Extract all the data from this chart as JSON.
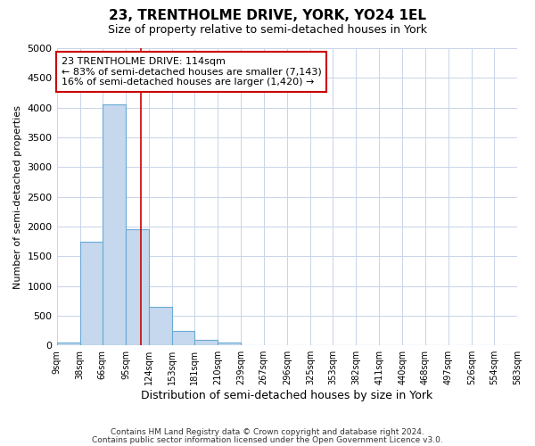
{
  "title": "23, TRENTHOLME DRIVE, YORK, YO24 1EL",
  "subtitle": "Size of property relative to semi-detached houses in York",
  "xlabel": "Distribution of semi-detached houses by size in York",
  "ylabel": "Number of semi-detached properties",
  "bin_edges": [
    9,
    38,
    66,
    95,
    124,
    153,
    181,
    210,
    239,
    267,
    296,
    325,
    353,
    382,
    411,
    440,
    468,
    497,
    526,
    554,
    583
  ],
  "bin_counts": [
    50,
    1750,
    4050,
    1950,
    650,
    240,
    90,
    50,
    0,
    0,
    0,
    0,
    0,
    0,
    0,
    0,
    0,
    0,
    0,
    0
  ],
  "property_size": 114,
  "bar_color": "#c5d8ee",
  "bar_edge_color": "#6aaad4",
  "vline_color": "#cc0000",
  "annotation_box_color": "#cc0000",
  "annotation_text_line1": "23 TRENTHOLME DRIVE: 114sqm",
  "annotation_text_line2": "← 83% of semi-detached houses are smaller (7,143)",
  "annotation_text_line3": "16% of semi-detached houses are larger (1,420) →",
  "ylim": [
    0,
    5000
  ],
  "yticks": [
    0,
    500,
    1000,
    1500,
    2000,
    2500,
    3000,
    3500,
    4000,
    4500,
    5000
  ],
  "tick_labels": [
    "9sqm",
    "38sqm",
    "66sqm",
    "95sqm",
    "124sqm",
    "153sqm",
    "181sqm",
    "210sqm",
    "239sqm",
    "267sqm",
    "296sqm",
    "325sqm",
    "353sqm",
    "382sqm",
    "411sqm",
    "440sqm",
    "468sqm",
    "497sqm",
    "526sqm",
    "554sqm",
    "583sqm"
  ],
  "footer_line1": "Contains HM Land Registry data © Crown copyright and database right 2024.",
  "footer_line2": "Contains public sector information licensed under the Open Government Licence v3.0.",
  "bg_color": "#ffffff",
  "plot_bg_color": "#ffffff",
  "grid_color": "#c8d4e8"
}
